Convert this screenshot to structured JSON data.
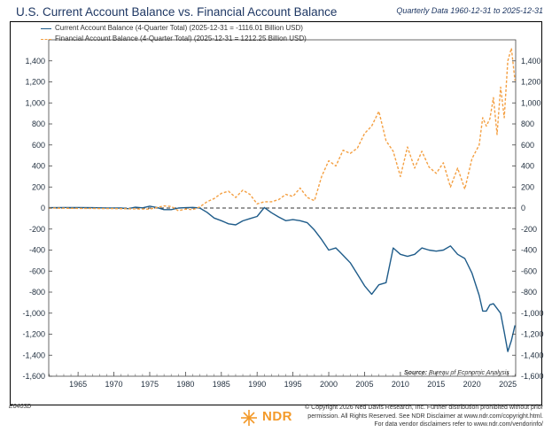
{
  "header": {
    "title": "U.S. Current Account Balance vs. Financial Account Balance",
    "subtitle": "Quarterly Data 1960-12-31 to 2025-12-31"
  },
  "legend": [
    {
      "label": "Current Account Balance (4-Quarter Total) (2025-12-31 = -1116.01 Billion USD)",
      "color": "#1f5c8a",
      "style": "solid"
    },
    {
      "label": "Financial Account Balance (4-Quarter Total) (2025-12-31 = 1212.25 Billion USD)",
      "color": "#f4a043",
      "style": "dashed"
    }
  ],
  "source": {
    "label": "Source:",
    "value": "Bureau of Economic Analysis"
  },
  "footer": {
    "code": "E0403D",
    "logo_text": "NDR",
    "copyright_lines": [
      "© Copyright 2026 Ned Davis Research, Inc. Further distribution prohibited without prior",
      "permission. All Rights Reserved. See NDR Disclaimer at www.ndr.com/copyright.html.",
      "For data vendor disclaimers refer to www.ndr.com/vendorinfo/"
    ]
  },
  "chart_data": {
    "type": "line",
    "ylim": [
      -1600,
      1600
    ],
    "xlim": [
      1960.9,
      2026.1
    ],
    "yticks": [
      -1600,
      -1400,
      -1200,
      -1000,
      -800,
      -600,
      -400,
      -200,
      0,
      200,
      400,
      600,
      800,
      1000,
      1200,
      1400
    ],
    "ytick_labels": [
      "-1,600",
      "-1,400",
      "-1,200",
      "-1,000",
      "-800",
      "-600",
      "-400",
      "-200",
      "0",
      "200",
      "400",
      "600",
      "800",
      "1,000",
      "1,200",
      "1,400"
    ],
    "xticks": [
      1965,
      1970,
      1975,
      1980,
      1985,
      1990,
      1995,
      2000,
      2005,
      2010,
      2015,
      2020,
      2025
    ],
    "xtick_labels": [
      "1965",
      "1970",
      "1975",
      "1980",
      "1985",
      "1990",
      "1995",
      "2000",
      "2005",
      "2010",
      "2015",
      "2020",
      "2025"
    ],
    "zero_line": "dashed",
    "legend_position": "top-left",
    "series": [
      {
        "name": "Current Account Balance (4-Quarter Total)",
        "color": "#1f5c8a",
        "style": "solid",
        "x": [
          1960.9,
          1963,
          1965,
          1967,
          1969,
          1971,
          1972,
          1973,
          1974,
          1975,
          1976,
          1977,
          1978,
          1979,
          1980,
          1981,
          1982,
          1983,
          1984,
          1985,
          1986,
          1987,
          1988,
          1989,
          1990,
          1991,
          1992,
          1993,
          1994,
          1995,
          1996,
          1997,
          1998,
          1999,
          2000,
          2001,
          2002,
          2003,
          2004,
          2005,
          2006,
          2007,
          2008,
          2009,
          2010,
          2011,
          2012,
          2013,
          2014,
          2015,
          2016,
          2017,
          2018,
          2019,
          2020,
          2021,
          2021.5,
          2022,
          2022.5,
          2023,
          2024,
          2024.5,
          2025,
          2025.5,
          2026
        ],
        "y": [
          3,
          5,
          5,
          3,
          1,
          0,
          -6,
          8,
          2,
          18,
          5,
          -15,
          -15,
          0,
          3,
          6,
          0,
          -40,
          -95,
          -120,
          -150,
          -160,
          -122,
          -100,
          -80,
          5,
          -45,
          -85,
          -120,
          -110,
          -120,
          -140,
          -210,
          -300,
          -400,
          -380,
          -450,
          -520,
          -630,
          -740,
          -820,
          -730,
          -710,
          -380,
          -440,
          -460,
          -440,
          -380,
          -400,
          -410,
          -400,
          -360,
          -440,
          -480,
          -620,
          -830,
          -980,
          -980,
          -920,
          -910,
          -1000,
          -1180,
          -1365,
          -1260,
          -1116
        ]
      },
      {
        "name": "Financial Account Balance (4-Quarter Total)",
        "color": "#f4a043",
        "style": "dashed",
        "x": [
          1960.9,
          1965,
          1970,
          1975,
          1977,
          1978,
          1979,
          1980,
          1981,
          1982,
          1983,
          1984,
          1985,
          1986,
          1987,
          1988,
          1989,
          1990,
          1991,
          1992,
          1993,
          1994,
          1995,
          1996,
          1997,
          1998,
          1999,
          2000,
          2001,
          2002,
          2003,
          2004,
          2005,
          2006,
          2007,
          2008,
          2009,
          2010,
          2011,
          2012,
          2013,
          2014,
          2015,
          2016,
          2017,
          2018,
          2019,
          2020,
          2021,
          2021.5,
          2022,
          2022.5,
          2023,
          2023.5,
          2024,
          2024.5,
          2025,
          2025.5,
          2026
        ],
        "y": [
          0,
          -3,
          -5,
          -10,
          20,
          15,
          -25,
          -10,
          -15,
          10,
          60,
          90,
          140,
          160,
          100,
          170,
          130,
          40,
          60,
          60,
          80,
          130,
          110,
          190,
          100,
          70,
          300,
          450,
          400,
          550,
          520,
          570,
          710,
          780,
          920,
          640,
          540,
          300,
          580,
          380,
          540,
          390,
          330,
          430,
          200,
          380,
          180,
          470,
          600,
          860,
          780,
          850,
          1050,
          700,
          1150,
          860,
          1400,
          1520,
          1212
        ]
      }
    ]
  }
}
